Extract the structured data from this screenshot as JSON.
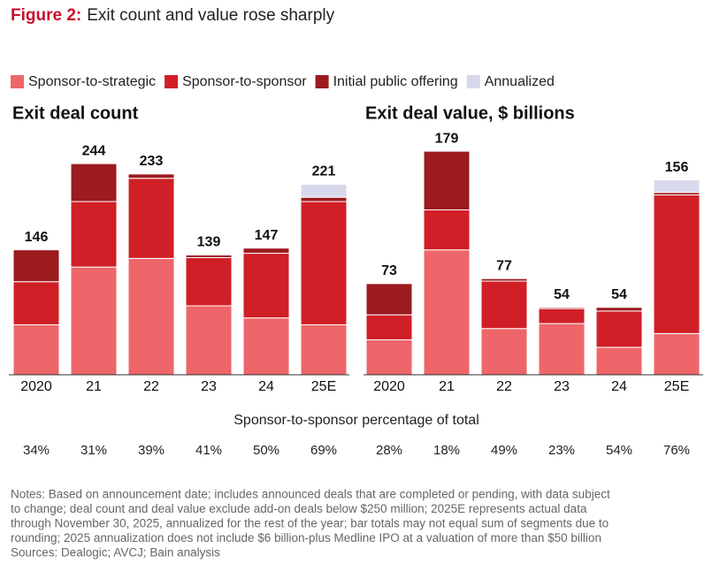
{
  "figure_label": "Figure 2:",
  "figure_title": "Exit count and value rose sharply",
  "chart_data": [
    {
      "type": "stacked-bar",
      "title": "Exit deal count",
      "categories": [
        "2020",
        "21",
        "22",
        "23",
        "24",
        "25E"
      ],
      "series": [
        {
          "name": "Sponsor-to-strategic",
          "color": "#ee6669",
          "values": [
            58,
            125,
            135,
            80,
            66,
            58
          ]
        },
        {
          "name": "Sponsor-to-sponsor",
          "color": "#d01f26",
          "values": [
            50,
            76,
            93,
            56,
            75,
            143
          ]
        },
        {
          "name": "Initial public offering",
          "color": "#9b1b1f",
          "values": [
            37,
            44,
            5,
            3,
            6,
            5
          ]
        },
        {
          "name": "Annualized",
          "color": "#d8d8ec",
          "values": [
            null,
            null,
            null,
            null,
            null,
            15
          ]
        }
      ],
      "totals": [
        146,
        244,
        233,
        139,
        147,
        221
      ]
    },
    {
      "type": "stacked-bar",
      "title": "Exit deal value, $ billions",
      "categories": [
        "2020",
        "21",
        "22",
        "23",
        "24",
        "25E"
      ],
      "series": [
        {
          "name": "Sponsor-to-strategic",
          "color": "#ee6669",
          "values": [
            28,
            100,
            37,
            41,
            22,
            33
          ]
        },
        {
          "name": "Sponsor-to-sponsor",
          "color": "#d01f26",
          "values": [
            20,
            32,
            38,
            12,
            29,
            111
          ]
        },
        {
          "name": "Initial public offering",
          "color": "#9b1b1f",
          "values": [
            25,
            47,
            2,
            1,
            3,
            2
          ]
        },
        {
          "name": "Annualized",
          "color": "#d8d8ec",
          "values": [
            null,
            null,
            null,
            null,
            null,
            10
          ]
        }
      ],
      "totals": [
        73,
        179,
        77,
        54,
        54,
        156
      ]
    }
  ],
  "share_row": {
    "title": "Sponsor-to-sponsor percentage of total",
    "cells": [
      [
        "34%",
        "31%",
        "39%",
        "41%",
        "50%",
        "69%"
      ],
      [
        "28%",
        "18%",
        "49%",
        "23%",
        "54%",
        "76%"
      ]
    ]
  },
  "notes": [
    "Notes: Based on announcement date; includes announced deals that are completed or pending, with data subject",
    "to change; deal count and deal value exclude add-on deals below $250 million; 2025E represents actual data",
    "through November 30, 2025, annualized for the rest of the year; bar totals may not equal sum of segments due to",
    "rounding; 2025 annualization does not include $6 billion-plus Medline IPO at a valuation of more than $50 billion",
    "Sources: Dealogic; AVCJ; Bain analysis"
  ]
}
